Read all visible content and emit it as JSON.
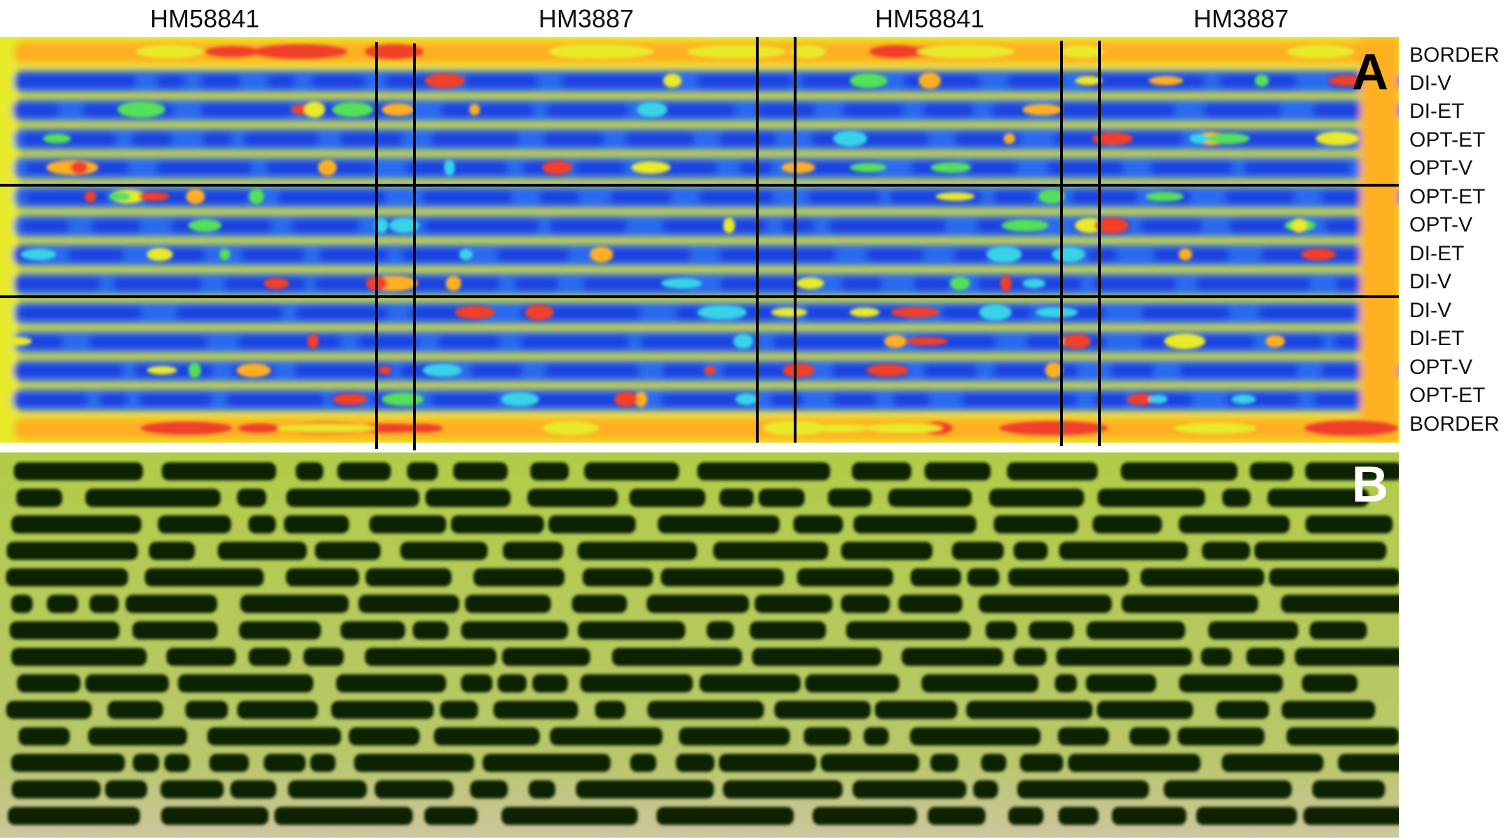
{
  "hybrid_labels": [
    "HM58841",
    "HM3887",
    "HM58841",
    "HM3887"
  ],
  "treatment_rows": [
    "BORDER",
    "DI-V",
    "DI-ET",
    "OPT-ET",
    "OPT-V",
    "OPT-ET",
    "OPT-V",
    "DI-ET",
    "DI-V",
    "DI-V",
    "DI-ET",
    "OPT-V",
    "OPT-ET",
    "BORDER"
  ],
  "panel_a": {
    "letter": "A",
    "palette": [
      "#1f3fe0",
      "#2a6bf0",
      "#39d3e8",
      "#55e05a",
      "#e8ea2a",
      "#ffb020",
      "#f0402a"
    ]
  },
  "panel_b": {
    "letter": "B",
    "palette": [
      "#0c2406",
      "#a7c44a",
      "#c9c28a"
    ]
  }
}
